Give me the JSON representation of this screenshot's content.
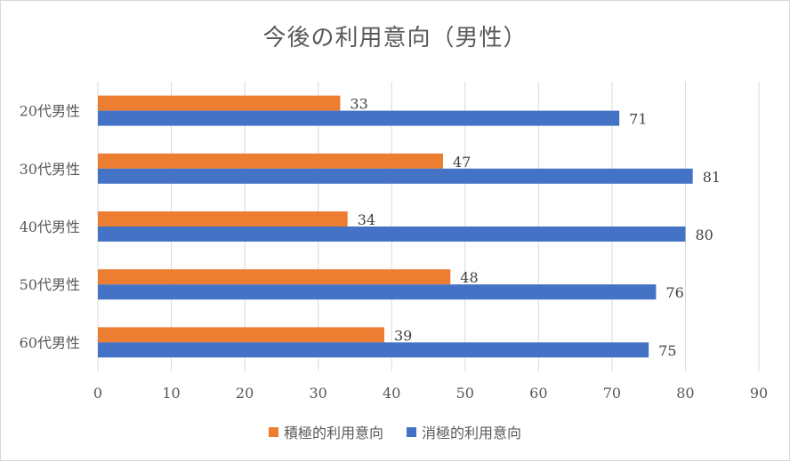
{
  "chart_data": {
    "type": "bar",
    "orientation": "horizontal",
    "title": "今後の利用意向（男性）",
    "categories": [
      "20代男性",
      "30代男性",
      "40代男性",
      "50代男性",
      "60代男性"
    ],
    "series": [
      {
        "name": "積極的利用意向",
        "color": "#ed7d31",
        "values": [
          33,
          47,
          34,
          48,
          39
        ]
      },
      {
        "name": "消極的利用意向",
        "color": "#4472c4",
        "values": [
          71,
          81,
          80,
          76,
          75
        ]
      }
    ],
    "xlim": [
      0,
      90
    ],
    "xticks": [
      0,
      10,
      20,
      30,
      40,
      50,
      60,
      70,
      80,
      90
    ],
    "grid": true,
    "legend_position": "bottom"
  }
}
